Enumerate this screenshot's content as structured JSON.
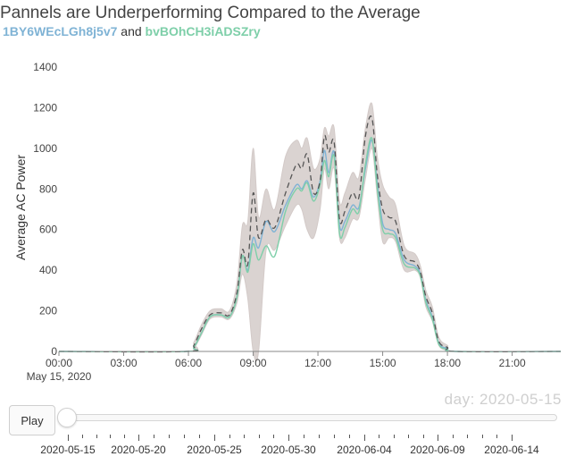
{
  "header": {
    "title": "Pannels are Underperforming Compared to the Average",
    "panel_a": "1BY6WEcLGh8j5v7",
    "joiner": "and",
    "panel_b": "bvBOhCH3iADSZry"
  },
  "colors": {
    "panel_a": "#7fb3d5",
    "panel_b": "#7ecfa9",
    "average_line": "#555555",
    "band": "#dad3d1"
  },
  "chart_data": {
    "type": "line",
    "ylabel": "Average AC Power",
    "ylim": [
      0,
      1400
    ],
    "yticks": [
      0,
      200,
      400,
      600,
      800,
      1000,
      1200,
      1400
    ],
    "xlim": [
      0,
      23.25
    ],
    "xticks": [
      {
        "value": 0,
        "label": "00:00"
      },
      {
        "value": 3,
        "label": "03:00"
      },
      {
        "value": 6,
        "label": "06:00"
      },
      {
        "value": 9,
        "label": "09:00"
      },
      {
        "value": 12,
        "label": "12:00"
      },
      {
        "value": 15,
        "label": "15:00"
      },
      {
        "value": 18,
        "label": "18:00"
      },
      {
        "value": 21,
        "label": "21:00"
      }
    ],
    "date_label": "May 15, 2020",
    "x": [
      0,
      5.9,
      6.25,
      6.6,
      7.0,
      7.5,
      7.9,
      8.25,
      8.5,
      8.75,
      9.0,
      9.25,
      9.6,
      10.0,
      10.5,
      11.0,
      11.25,
      11.5,
      11.8,
      12.1,
      12.3,
      12.5,
      12.75,
      13.0,
      13.25,
      13.6,
      13.9,
      14.2,
      14.5,
      14.75,
      15.0,
      15.3,
      15.6,
      16.0,
      16.5,
      16.75,
      17.0,
      17.3,
      17.6,
      18.0,
      18.4,
      23.25
    ],
    "series": [
      {
        "name": "avg",
        "values": [
          0,
          0,
          30,
          110,
          180,
          190,
          180,
          290,
          500,
          430,
          780,
          560,
          650,
          610,
          780,
          920,
          900,
          970,
          780,
          840,
          1060,
          980,
          1030,
          650,
          690,
          780,
          760,
          1060,
          1150,
          870,
          700,
          660,
          640,
          470,
          440,
          390,
          270,
          190,
          50,
          20,
          0,
          0
        ]
      },
      {
        "name": "1BY6WEcLGh8j5v7",
        "values": [
          0,
          0,
          20,
          90,
          170,
          180,
          170,
          270,
          470,
          400,
          560,
          510,
          640,
          590,
          720,
          820,
          800,
          840,
          760,
          840,
          990,
          880,
          980,
          620,
          640,
          720,
          710,
          900,
          1040,
          830,
          630,
          600,
          580,
          450,
          420,
          380,
          250,
          170,
          40,
          15,
          0,
          0
        ]
      },
      {
        "name": "bvBOhCH3iADSZry",
        "values": [
          0,
          0,
          20,
          90,
          170,
          180,
          170,
          270,
          470,
          390,
          530,
          450,
          520,
          470,
          690,
          800,
          790,
          830,
          740,
          820,
          940,
          860,
          960,
          580,
          610,
          700,
          690,
          920,
          1050,
          800,
          600,
          580,
          560,
          430,
          410,
          370,
          240,
          160,
          35,
          10,
          0,
          0
        ]
      }
    ],
    "band": {
      "lower": [
        0,
        0,
        15,
        80,
        160,
        170,
        160,
        240,
        380,
        260,
        0,
        0,
        500,
        500,
        620,
        720,
        700,
        600,
        560,
        700,
        900,
        800,
        900,
        560,
        560,
        650,
        660,
        850,
        1000,
        760,
        540,
        560,
        540,
        400,
        400,
        360,
        220,
        150,
        30,
        5,
        0,
        0
      ],
      "upper": [
        0,
        0,
        45,
        130,
        200,
        210,
        200,
        340,
        620,
        640,
        1000,
        660,
        800,
        700,
        960,
        1040,
        1000,
        1050,
        900,
        950,
        1100,
        1060,
        1100,
        740,
        780,
        880,
        860,
        1100,
        1220,
        960,
        820,
        760,
        720,
        520,
        480,
        420,
        300,
        220,
        70,
        30,
        0,
        0
      ]
    }
  },
  "day_display": {
    "label": "day: 2020-05-15"
  },
  "controls": {
    "play_label": "Play",
    "slider_value": 0,
    "slider_labels": [
      "2020-05-15",
      "2020-05-20",
      "2020-05-25",
      "2020-05-30",
      "2020-06-04",
      "2020-06-09",
      "2020-06-14"
    ]
  }
}
